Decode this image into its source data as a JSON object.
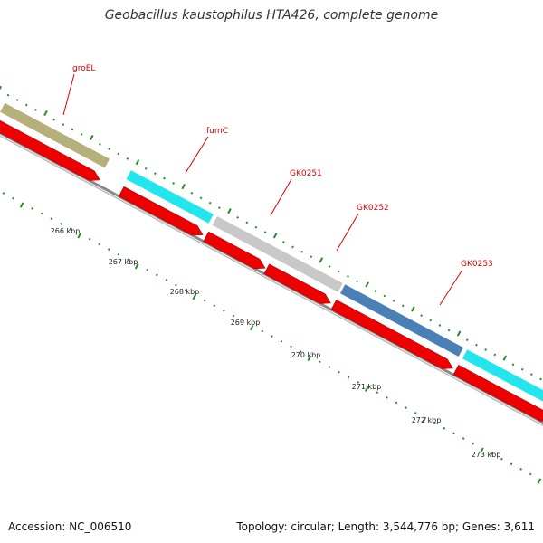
{
  "title": "Geobacillus kaustophilus HTA426, complete genome",
  "footer": {
    "accession": "Accession: NC_006510",
    "stats": "Topology: circular; Length: 3,544,776 bp; Genes: 3,611"
  },
  "scale_labels": [
    "266 kbp",
    "267 kbp",
    "268 kbp",
    "269 kbp",
    "270 kbp",
    "271 kbp",
    "272 kbp",
    "273 kbp"
  ],
  "genes": [
    {
      "name": "groEL",
      "color": "#b5b07a"
    },
    {
      "name": "fumC",
      "color": "#22e5ee"
    },
    {
      "name": "GK0251",
      "color": "#c8c8c8"
    },
    {
      "name": "GK0252",
      "color": "#c8c8c8"
    },
    {
      "name": "GK0253",
      "color": "#4a80b5"
    },
    {
      "name": "",
      "color": "#22e5ee"
    }
  ],
  "colors": {
    "cds": "#ee0000",
    "backbone": "#8a8a8a",
    "tick": "#2a8a2a",
    "label": "#dd0000"
  }
}
